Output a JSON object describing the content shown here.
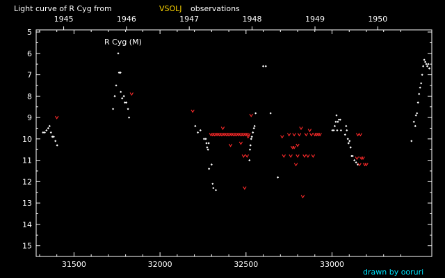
{
  "header": {
    "title_prefix": "Light curve of R Cyg from",
    "source": "VSOLJ",
    "title_suffix": "observations"
  },
  "credit": "drawn by ooruri",
  "colors": {
    "background": "#000000",
    "axis": "#ffffff",
    "visual_points": "#ffffff",
    "fainter_than": "#ff2a2a",
    "source_label": "#ffd700",
    "credit": "#00e5ff"
  },
  "chart_data": {
    "type": "scatter",
    "star_label": "R Cyg (M)",
    "xlabel": "",
    "ylabel": "",
    "xlim": [
      31280,
      33580
    ],
    "ylim": [
      15.5,
      4.9
    ],
    "y_inverted": true,
    "grid": false,
    "x_ticks": [
      31500,
      32000,
      32500,
      33000
    ],
    "x_tick_labels": [
      "31500",
      "32000",
      "32500",
      "33000"
    ],
    "y_ticks": [
      5,
      6,
      7,
      8,
      9,
      10,
      11,
      12,
      13,
      14,
      15
    ],
    "y_tick_labels": [
      "5",
      "6",
      "7",
      "8",
      "9",
      "10",
      "11",
      "12",
      "13",
      "14",
      "15"
    ],
    "year_ticks": [
      31440,
      31805,
      32170,
      32535,
      32901,
      33266
    ],
    "year_labels": [
      "1945",
      "1946",
      "1947",
      "1948",
      "1949",
      "1950"
    ],
    "series": [
      {
        "marker": "dot",
        "points": [
          [
            31320,
            9.7
          ],
          [
            31330,
            9.7
          ],
          [
            31340,
            9.6
          ],
          [
            31350,
            9.5
          ],
          [
            31358,
            9.4
          ],
          [
            31366,
            9.7
          ],
          [
            31374,
            9.9
          ],
          [
            31382,
            9.9
          ],
          [
            31392,
            10.1
          ],
          [
            31402,
            10.3
          ],
          [
            31727,
            8.6
          ],
          [
            31737,
            8.0
          ],
          [
            31745,
            7.5
          ],
          [
            31757,
            6.0
          ],
          [
            31762,
            6.9
          ],
          [
            31770,
            6.9
          ],
          [
            31772,
            7.8
          ],
          [
            31780,
            8.1
          ],
          [
            31790,
            8.0
          ],
          [
            31796,
            8.3
          ],
          [
            31804,
            8.3
          ],
          [
            31814,
            8.6
          ],
          [
            31820,
            9.0
          ],
          [
            32205,
            9.4
          ],
          [
            32220,
            9.7
          ],
          [
            32235,
            9.6
          ],
          [
            32256,
            10.0
          ],
          [
            32266,
            10.0
          ],
          [
            32270,
            10.2
          ],
          [
            32274,
            10.4
          ],
          [
            32279,
            10.5
          ],
          [
            32283,
            10.2
          ],
          [
            32285,
            11.4
          ],
          [
            32300,
            11.2
          ],
          [
            32306,
            12.1
          ],
          [
            32310,
            12.3
          ],
          [
            32325,
            12.4
          ],
          [
            32520,
            11.0
          ],
          [
            32523,
            10.5
          ],
          [
            32526,
            10.3
          ],
          [
            32530,
            10.0
          ],
          [
            32534,
            9.9
          ],
          [
            32540,
            9.7
          ],
          [
            32546,
            9.5
          ],
          [
            32550,
            9.4
          ],
          [
            32556,
            8.8
          ],
          [
            32600,
            6.6
          ],
          [
            32615,
            6.6
          ],
          [
            32643,
            8.8
          ],
          [
            32685,
            11.8
          ],
          [
            33002,
            9.6
          ],
          [
            33010,
            9.6
          ],
          [
            33016,
            9.4
          ],
          [
            33022,
            9.2
          ],
          [
            33026,
            8.9
          ],
          [
            33030,
            9.6
          ],
          [
            33034,
            9.2
          ],
          [
            33040,
            9.1
          ],
          [
            33048,
            9.1
          ],
          [
            33052,
            9.6
          ],
          [
            33076,
            9.8
          ],
          [
            33082,
            9.4
          ],
          [
            33086,
            9.6
          ],
          [
            33092,
            10.0
          ],
          [
            33096,
            10.2
          ],
          [
            33102,
            10.1
          ],
          [
            33108,
            10.4
          ],
          [
            33114,
            10.8
          ],
          [
            33120,
            10.8
          ],
          [
            33130,
            11.0
          ],
          [
            33140,
            11.1
          ],
          [
            33150,
            11.2
          ],
          [
            33462,
            10.1
          ],
          [
            33476,
            9.2
          ],
          [
            33484,
            9.4
          ],
          [
            33488,
            8.9
          ],
          [
            33494,
            8.8
          ],
          [
            33500,
            8.3
          ],
          [
            33506,
            7.9
          ],
          [
            33512,
            7.6
          ],
          [
            33518,
            7.4
          ],
          [
            33524,
            7.0
          ],
          [
            33530,
            6.6
          ],
          [
            33536,
            6.3
          ],
          [
            33542,
            6.4
          ],
          [
            33548,
            6.5
          ],
          [
            33554,
            6.6
          ],
          [
            33560,
            6.5
          ],
          [
            33566,
            6.7
          ]
        ]
      },
      {
        "marker": "fainter-than",
        "points": [
          [
            31400,
            9.0
          ],
          [
            31835,
            7.9
          ],
          [
            32190,
            8.7
          ],
          [
            32296,
            9.8
          ],
          [
            32306,
            9.8
          ],
          [
            32316,
            9.8
          ],
          [
            32326,
            9.8
          ],
          [
            32336,
            9.8
          ],
          [
            32346,
            9.8
          ],
          [
            32356,
            9.8
          ],
          [
            32366,
            9.8
          ],
          [
            32376,
            9.8
          ],
          [
            32386,
            9.8
          ],
          [
            32396,
            9.8
          ],
          [
            32406,
            9.8
          ],
          [
            32416,
            9.8
          ],
          [
            32426,
            9.8
          ],
          [
            32436,
            9.8
          ],
          [
            32446,
            9.8
          ],
          [
            32456,
            9.8
          ],
          [
            32466,
            9.8
          ],
          [
            32476,
            9.8
          ],
          [
            32486,
            9.8
          ],
          [
            32496,
            9.8
          ],
          [
            32506,
            9.8
          ],
          [
            32516,
            9.8
          ],
          [
            32365,
            9.5
          ],
          [
            32410,
            10.3
          ],
          [
            32470,
            10.2
          ],
          [
            32486,
            10.8
          ],
          [
            32492,
            12.3
          ],
          [
            32506,
            10.8
          ],
          [
            32512,
            9.9
          ],
          [
            32530,
            8.9
          ],
          [
            32710,
            9.9
          ],
          [
            32720,
            10.8
          ],
          [
            32750,
            9.8
          ],
          [
            32760,
            10.8
          ],
          [
            32770,
            10.4
          ],
          [
            32780,
            9.8
          ],
          [
            32790,
            11.2
          ],
          [
            32800,
            10.8
          ],
          [
            32810,
            9.8
          ],
          [
            32820,
            9.5
          ],
          [
            32830,
            12.7
          ],
          [
            32840,
            10.8
          ],
          [
            32850,
            9.8
          ],
          [
            32860,
            10.8
          ],
          [
            32870,
            9.6
          ],
          [
            32880,
            9.8
          ],
          [
            32890,
            10.8
          ],
          [
            32900,
            9.8
          ],
          [
            32910,
            9.8
          ],
          [
            32920,
            9.8
          ],
          [
            32930,
            9.8
          ],
          [
            32780,
            10.4
          ],
          [
            32800,
            10.3
          ],
          [
            33150,
            9.8
          ],
          [
            33160,
            11.2
          ],
          [
            33170,
            10.9
          ],
          [
            33180,
            10.9
          ],
          [
            33190,
            11.2
          ],
          [
            33200,
            11.2
          ],
          [
            33145,
            10.9
          ],
          [
            33165,
            9.8
          ]
        ]
      }
    ]
  }
}
